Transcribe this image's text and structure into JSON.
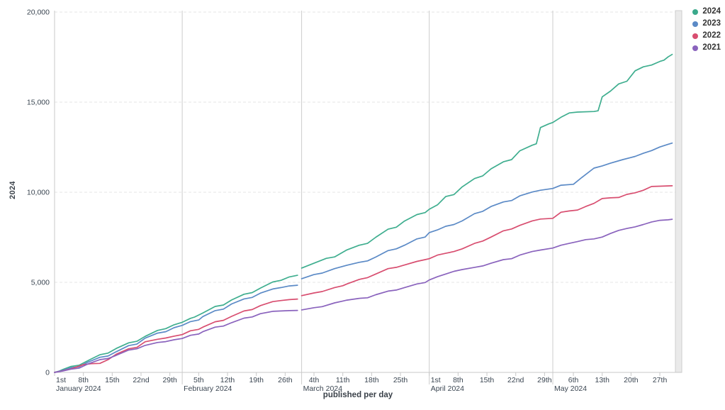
{
  "chart_data": {
    "type": "line",
    "title": "",
    "xlabel": "published per day",
    "ylabel": "2024",
    "ylim": [
      0,
      20000
    ],
    "grid": "horizontal-dashed",
    "legend_position": "top-right",
    "colors": {
      "grid": "#e4e4e4",
      "month_line": "#cccccc",
      "axis": "#c8c8c8",
      "tick_text": "#3b4652",
      "edge_band_fill": "#eaeaea",
      "edge_band_stroke": "#cdcdcd"
    },
    "y_ticks": [
      {
        "value": 0,
        "label": "0"
      },
      {
        "value": 5000,
        "label": "5,000"
      },
      {
        "value": 10000,
        "label": "10,000"
      },
      {
        "value": 15000,
        "label": "15,000"
      },
      {
        "value": 20000,
        "label": "20,000"
      }
    ],
    "week_ticks": [
      {
        "day": 0,
        "label": "1st"
      },
      {
        "day": 7,
        "label": "8th"
      },
      {
        "day": 14,
        "label": "15th"
      },
      {
        "day": 21,
        "label": "22nd"
      },
      {
        "day": 28,
        "label": "29th"
      },
      {
        "day": 35,
        "label": "5th"
      },
      {
        "day": 42,
        "label": "12th"
      },
      {
        "day": 49,
        "label": "19th"
      },
      {
        "day": 56,
        "label": "26th"
      },
      {
        "day": 63,
        "label": "4th"
      },
      {
        "day": 70,
        "label": "11th"
      },
      {
        "day": 77,
        "label": "18th"
      },
      {
        "day": 84,
        "label": "25th"
      },
      {
        "day": 91,
        "label": "1st"
      },
      {
        "day": 98,
        "label": "8th"
      },
      {
        "day": 105,
        "label": "15th"
      },
      {
        "day": 112,
        "label": "22nd"
      },
      {
        "day": 119,
        "label": "29th"
      },
      {
        "day": 126,
        "label": "6th"
      },
      {
        "day": 133,
        "label": "13th"
      },
      {
        "day": 140,
        "label": "20th"
      },
      {
        "day": 147,
        "label": "27th"
      }
    ],
    "months": [
      {
        "day": 0,
        "label": "January 2024"
      },
      {
        "day": 31,
        "label": "February 2024"
      },
      {
        "day": 60,
        "label": "March 2024"
      },
      {
        "day": 91,
        "label": "April 2024"
      },
      {
        "day": 121,
        "label": "May 2024"
      }
    ],
    "legend": [
      {
        "label": "2024",
        "color": "#3aa98b"
      },
      {
        "label": "2023",
        "color": "#5b8ac6"
      },
      {
        "label": "2022",
        "color": "#d84e70"
      },
      {
        "label": "2021",
        "color": "#8a63bd"
      }
    ],
    "series": [
      {
        "name": "2024",
        "color": "#3fae8f",
        "points": [
          [
            0,
            0
          ],
          [
            1,
            60
          ],
          [
            2,
            160
          ],
          [
            4,
            330
          ],
          [
            6,
            400
          ],
          [
            8,
            640
          ],
          [
            11,
            980
          ],
          [
            13,
            1070
          ],
          [
            15,
            1330
          ],
          [
            18,
            1640
          ],
          [
            20,
            1730
          ],
          [
            22,
            2000
          ],
          [
            25,
            2330
          ],
          [
            27,
            2430
          ],
          [
            29,
            2640
          ],
          [
            31,
            2780
          ],
          [
            33,
            3000
          ],
          [
            34,
            3070
          ],
          [
            36,
            3300
          ],
          [
            39,
            3660
          ],
          [
            41,
            3740
          ],
          [
            43,
            4020
          ],
          [
            46,
            4340
          ],
          [
            48,
            4430
          ],
          [
            50,
            4680
          ],
          [
            53,
            5020
          ],
          [
            55,
            5110
          ],
          [
            57,
            5300
          ],
          [
            59,
            5390
          ],
          null,
          [
            60,
            5790
          ],
          [
            63,
            6060
          ],
          [
            66,
            6330
          ],
          [
            68,
            6410
          ],
          [
            71,
            6800
          ],
          [
            74,
            7060
          ],
          [
            76,
            7160
          ],
          [
            78,
            7500
          ],
          [
            81,
            7950
          ],
          [
            83,
            8060
          ],
          [
            85,
            8400
          ],
          [
            88,
            8760
          ],
          [
            90,
            8870
          ],
          [
            91,
            9055
          ],
          [
            93,
            9300
          ],
          [
            95,
            9760
          ],
          [
            97,
            9870
          ],
          [
            99,
            10300
          ],
          [
            102,
            10760
          ],
          [
            104,
            10910
          ],
          [
            106,
            11300
          ],
          [
            109,
            11690
          ],
          [
            111,
            11810
          ],
          [
            113,
            12300
          ],
          [
            116,
            12610
          ],
          [
            117,
            12690
          ],
          [
            118,
            13590
          ],
          [
            120,
            13790
          ],
          [
            121,
            13870
          ],
          [
            123,
            14160
          ],
          [
            125,
            14400
          ],
          [
            127,
            14450
          ],
          [
            131,
            14480
          ],
          [
            132,
            14520
          ],
          [
            133,
            15290
          ],
          [
            135,
            15610
          ],
          [
            137,
            16010
          ],
          [
            139,
            16160
          ],
          [
            141,
            16740
          ],
          [
            143,
            16960
          ],
          [
            145,
            17060
          ],
          [
            147,
            17260
          ],
          [
            148,
            17330
          ],
          [
            149,
            17510
          ],
          [
            150,
            17650
          ]
        ]
      },
      {
        "name": "2023",
        "color": "#5b8ac6",
        "points": [
          [
            0,
            0
          ],
          [
            2,
            120
          ],
          [
            4,
            260
          ],
          [
            6,
            320
          ],
          [
            8,
            560
          ],
          [
            11,
            840
          ],
          [
            13,
            910
          ],
          [
            15,
            1150
          ],
          [
            18,
            1490
          ],
          [
            20,
            1570
          ],
          [
            22,
            1900
          ],
          [
            25,
            2180
          ],
          [
            27,
            2260
          ],
          [
            29,
            2480
          ],
          [
            31,
            2610
          ],
          [
            33,
            2820
          ],
          [
            35,
            2910
          ],
          [
            36,
            3100
          ],
          [
            39,
            3430
          ],
          [
            41,
            3510
          ],
          [
            43,
            3800
          ],
          [
            46,
            4080
          ],
          [
            48,
            4160
          ],
          [
            50,
            4400
          ],
          [
            53,
            4630
          ],
          [
            55,
            4710
          ],
          [
            57,
            4800
          ],
          [
            59,
            4840
          ],
          null,
          [
            60,
            5200
          ],
          [
            63,
            5430
          ],
          [
            65,
            5510
          ],
          [
            68,
            5760
          ],
          [
            71,
            5950
          ],
          [
            74,
            6110
          ],
          [
            76,
            6190
          ],
          [
            78,
            6400
          ],
          [
            81,
            6760
          ],
          [
            83,
            6860
          ],
          [
            85,
            7060
          ],
          [
            88,
            7410
          ],
          [
            90,
            7510
          ],
          [
            91,
            7760
          ],
          [
            93,
            7910
          ],
          [
            95,
            8110
          ],
          [
            97,
            8210
          ],
          [
            99,
            8410
          ],
          [
            102,
            8810
          ],
          [
            104,
            8940
          ],
          [
            106,
            9210
          ],
          [
            109,
            9460
          ],
          [
            111,
            9540
          ],
          [
            113,
            9800
          ],
          [
            116,
            10010
          ],
          [
            118,
            10110
          ],
          [
            121,
            10210
          ],
          [
            123,
            10390
          ],
          [
            126,
            10440
          ],
          [
            128,
            10810
          ],
          [
            131,
            11340
          ],
          [
            133,
            11460
          ],
          [
            135,
            11610
          ],
          [
            138,
            11810
          ],
          [
            141,
            11990
          ],
          [
            143,
            12160
          ],
          [
            145,
            12310
          ],
          [
            147,
            12510
          ],
          [
            149,
            12660
          ],
          [
            150,
            12730
          ]
        ]
      },
      {
        "name": "2022",
        "color": "#d84e70",
        "points": [
          [
            0,
            0
          ],
          [
            2,
            90
          ],
          [
            4,
            200
          ],
          [
            7,
            430
          ],
          [
            9,
            490
          ],
          [
            11,
            500
          ],
          [
            13,
            710
          ],
          [
            15,
            1010
          ],
          [
            18,
            1310
          ],
          [
            20,
            1390
          ],
          [
            22,
            1700
          ],
          [
            25,
            1840
          ],
          [
            27,
            1910
          ],
          [
            29,
            2010
          ],
          [
            31,
            2100
          ],
          [
            33,
            2310
          ],
          [
            35,
            2390
          ],
          [
            36,
            2510
          ],
          [
            39,
            2810
          ],
          [
            41,
            2890
          ],
          [
            43,
            3110
          ],
          [
            46,
            3410
          ],
          [
            48,
            3490
          ],
          [
            50,
            3710
          ],
          [
            53,
            3930
          ],
          [
            55,
            3990
          ],
          [
            57,
            4040
          ],
          [
            59,
            4070
          ],
          null,
          [
            60,
            4260
          ],
          [
            63,
            4410
          ],
          [
            65,
            4490
          ],
          [
            68,
            4710
          ],
          [
            70,
            4810
          ],
          [
            71,
            4910
          ],
          [
            74,
            5160
          ],
          [
            76,
            5260
          ],
          [
            78,
            5460
          ],
          [
            81,
            5760
          ],
          [
            83,
            5830
          ],
          [
            85,
            5960
          ],
          [
            88,
            6160
          ],
          [
            90,
            6260
          ],
          [
            91,
            6310
          ],
          [
            93,
            6510
          ],
          [
            95,
            6610
          ],
          [
            97,
            6710
          ],
          [
            99,
            6860
          ],
          [
            102,
            7160
          ],
          [
            104,
            7290
          ],
          [
            106,
            7510
          ],
          [
            109,
            7860
          ],
          [
            111,
            7960
          ],
          [
            113,
            8160
          ],
          [
            116,
            8410
          ],
          [
            118,
            8510
          ],
          [
            121,
            8550
          ],
          [
            123,
            8890
          ],
          [
            125,
            8960
          ],
          [
            127,
            9010
          ],
          [
            129,
            9210
          ],
          [
            131,
            9380
          ],
          [
            133,
            9650
          ],
          [
            135,
            9690
          ],
          [
            137,
            9710
          ],
          [
            139,
            9880
          ],
          [
            141,
            9970
          ],
          [
            143,
            10110
          ],
          [
            145,
            10320
          ],
          [
            147,
            10335
          ],
          [
            150,
            10360
          ]
        ]
      },
      {
        "name": "2021",
        "color": "#8a63bd",
        "points": [
          [
            0,
            0
          ],
          [
            2,
            80
          ],
          [
            4,
            180
          ],
          [
            6,
            240
          ],
          [
            8,
            460
          ],
          [
            11,
            710
          ],
          [
            13,
            770
          ],
          [
            15,
            950
          ],
          [
            18,
            1240
          ],
          [
            20,
            1310
          ],
          [
            22,
            1500
          ],
          [
            25,
            1660
          ],
          [
            27,
            1710
          ],
          [
            29,
            1810
          ],
          [
            31,
            1880
          ],
          [
            33,
            2060
          ],
          [
            35,
            2130
          ],
          [
            36,
            2260
          ],
          [
            39,
            2510
          ],
          [
            41,
            2570
          ],
          [
            43,
            2760
          ],
          [
            46,
            3010
          ],
          [
            48,
            3080
          ],
          [
            50,
            3260
          ],
          [
            53,
            3390
          ],
          [
            55,
            3410
          ],
          [
            57,
            3430
          ],
          [
            59,
            3440
          ],
          null,
          [
            60,
            3470
          ],
          [
            63,
            3590
          ],
          [
            65,
            3650
          ],
          [
            68,
            3860
          ],
          [
            70,
            3960
          ],
          [
            71,
            4010
          ],
          [
            74,
            4110
          ],
          [
            76,
            4140
          ],
          [
            78,
            4310
          ],
          [
            81,
            4510
          ],
          [
            83,
            4570
          ],
          [
            85,
            4710
          ],
          [
            88,
            4910
          ],
          [
            90,
            4990
          ],
          [
            91,
            5130
          ],
          [
            93,
            5310
          ],
          [
            95,
            5460
          ],
          [
            97,
            5610
          ],
          [
            99,
            5710
          ],
          [
            102,
            5830
          ],
          [
            104,
            5910
          ],
          [
            106,
            6060
          ],
          [
            109,
            6260
          ],
          [
            111,
            6310
          ],
          [
            113,
            6510
          ],
          [
            116,
            6710
          ],
          [
            118,
            6790
          ],
          [
            121,
            6900
          ],
          [
            123,
            7060
          ],
          [
            125,
            7160
          ],
          [
            127,
            7260
          ],
          [
            129,
            7370
          ],
          [
            131,
            7410
          ],
          [
            133,
            7510
          ],
          [
            135,
            7710
          ],
          [
            137,
            7880
          ],
          [
            139,
            7990
          ],
          [
            141,
            8080
          ],
          [
            143,
            8210
          ],
          [
            145,
            8350
          ],
          [
            147,
            8440
          ],
          [
            149,
            8470
          ],
          [
            150,
            8500
          ]
        ]
      }
    ]
  }
}
